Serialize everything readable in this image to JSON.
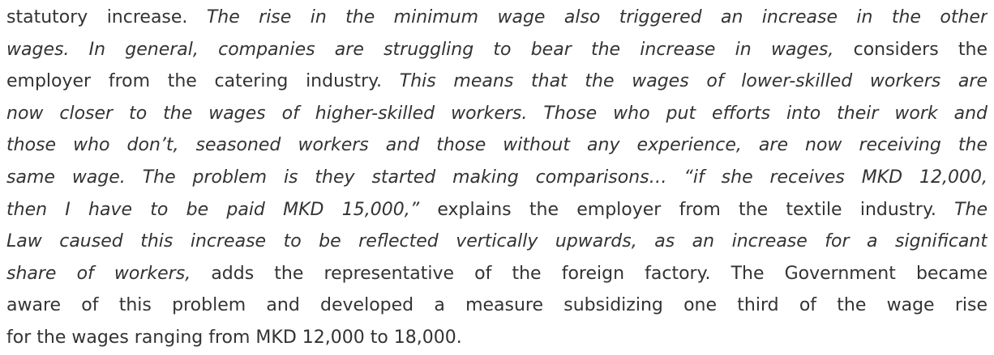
{
  "lines": [
    {
      "segments": [
        {
          "text": "statutory increase.",
          "italic": false
        },
        {
          "text": "The rise in the minimum wage also triggered an increase in the other",
          "italic": true
        }
      ]
    },
    {
      "segments": [
        {
          "text": "wages. In general, companies are struggling to bear the increase in wages,",
          "italic": true
        },
        {
          "text": "considers the",
          "italic": false
        }
      ]
    },
    {
      "segments": [
        {
          "text": "employer from the catering industry.",
          "italic": false
        },
        {
          "text": "This means that the wages of lower-skilled workers are",
          "italic": true
        }
      ]
    },
    {
      "segments": [
        {
          "text": "now closer to the wages of higher-skilled workers. Those who put efforts into their work and",
          "italic": true
        }
      ]
    },
    {
      "segments": [
        {
          "text": "those who don’t, seasoned workers and those without any experience, are now receiving the",
          "italic": true
        }
      ]
    },
    {
      "segments": [
        {
          "text": "same wage. The problem is they started making comparisons… “if she receives MKD 12,000,",
          "italic": true
        }
      ]
    },
    {
      "segments": [
        {
          "text": "then I have to be paid MKD 15,000,”",
          "italic": true
        },
        {
          "text": "explains the employer from the textile industry.",
          "italic": false
        },
        {
          "text": "The",
          "italic": true
        }
      ]
    },
    {
      "segments": [
        {
          "text": "Law caused this increase to be reflected vertically upwards, as an increase for a significant",
          "italic": true
        }
      ]
    },
    {
      "segments": [
        {
          "text": "share of workers,",
          "italic": true
        },
        {
          "text": "adds the representative of the foreign factory. The Government became",
          "italic": false
        }
      ]
    },
    {
      "segments": [
        {
          "text": "aware of this problem and developed a measure subsidizing one third of the wage rise",
          "italic": false
        }
      ]
    },
    {
      "segments": [
        {
          "text": "for the wages ranging from MKD 12,000 to 18,000.",
          "italic": false
        }
      ]
    }
  ]
}
